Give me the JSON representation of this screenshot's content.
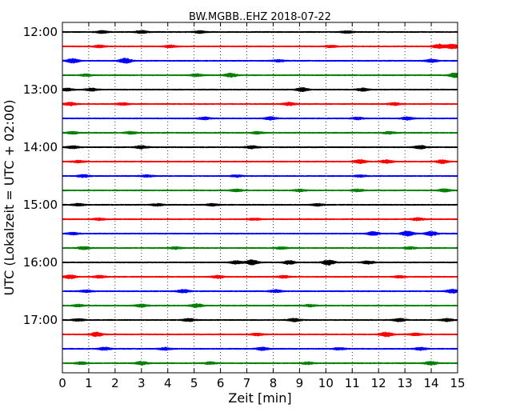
{
  "chart_data": {
    "type": "line",
    "title": "BW.MGBB..EHZ 2018-07-22",
    "xlabel": "Zeit  [min]",
    "ylabel": "UTC (Lokalzeit = UTC + 02:00)",
    "xlim": [
      0,
      15
    ],
    "x_ticks": [
      0,
      1,
      2,
      3,
      4,
      5,
      6,
      7,
      8,
      9,
      10,
      11,
      12,
      13,
      14,
      15
    ],
    "x_tick_labels": [
      "0",
      "1",
      "2",
      "3",
      "4",
      "5",
      "6",
      "7",
      "8",
      "9",
      "10",
      "11",
      "12",
      "13",
      "14",
      "15"
    ],
    "y_tick_labels": [
      "12:00",
      "13:00",
      "14:00",
      "15:00",
      "16:00",
      "17:00"
    ],
    "grid": "vertical dotted",
    "colors": [
      "#000000",
      "#ff0000",
      "#0000ff",
      "#008000"
    ],
    "traces": [
      {
        "start": "12:00",
        "bursts": [
          [
            1.5,
            1.3
          ],
          [
            3.0,
            1.6
          ],
          [
            5.2,
            1.2
          ],
          [
            10.8,
            1.2
          ]
        ]
      },
      {
        "start": "12:15",
        "bursts": [
          [
            1.4,
            1.4
          ],
          [
            4.1,
            1.3
          ],
          [
            10.2,
            1.2
          ],
          [
            14.3,
            2.4
          ],
          [
            14.8,
            2.7
          ]
        ]
      },
      {
        "start": "12:30",
        "bursts": [
          [
            0.4,
            2.5
          ],
          [
            2.4,
            2.9
          ],
          [
            8.2,
            1.2
          ],
          [
            14.0,
            1.6
          ]
        ]
      },
      {
        "start": "12:45",
        "bursts": [
          [
            0.9,
            1.2
          ],
          [
            5.1,
            1.4
          ],
          [
            6.4,
            2.2
          ],
          [
            14.9,
            2.5
          ]
        ]
      },
      {
        "start": "13:00",
        "bursts": [
          [
            0.2,
            1.4
          ],
          [
            1.1,
            1.5
          ],
          [
            9.1,
            2.0
          ],
          [
            11.4,
            1.6
          ]
        ]
      },
      {
        "start": "13:15",
        "bursts": [
          [
            0.3,
            1.8
          ],
          [
            2.3,
            1.3
          ],
          [
            8.6,
            1.7
          ],
          [
            12.6,
            1.4
          ]
        ]
      },
      {
        "start": "13:30",
        "bursts": [
          [
            5.4,
            1.3
          ],
          [
            7.9,
            1.6
          ],
          [
            11.2,
            1.3
          ],
          [
            13.1,
            1.7
          ]
        ]
      },
      {
        "start": "13:45",
        "bursts": [
          [
            0.4,
            1.3
          ],
          [
            2.6,
            1.5
          ],
          [
            7.4,
            1.2
          ],
          [
            12.4,
            1.3
          ]
        ]
      },
      {
        "start": "14:00",
        "bursts": [
          [
            0.4,
            1.4
          ],
          [
            3.0,
            1.8
          ],
          [
            7.2,
            1.5
          ],
          [
            13.6,
            1.8
          ]
        ]
      },
      {
        "start": "14:15",
        "bursts": [
          [
            0.6,
            1.3
          ],
          [
            11.3,
            2.2
          ],
          [
            12.3,
            1.8
          ],
          [
            14.4,
            2.0
          ]
        ]
      },
      {
        "start": "14:30",
        "bursts": [
          [
            0.8,
            1.5
          ],
          [
            3.2,
            1.2
          ],
          [
            6.6,
            1.2
          ],
          [
            11.3,
            1.1
          ]
        ]
      },
      {
        "start": "14:45",
        "bursts": [
          [
            6.6,
            1.3
          ],
          [
            9.0,
            1.2
          ],
          [
            11.2,
            1.4
          ],
          [
            14.5,
            1.6
          ]
        ]
      },
      {
        "start": "15:00",
        "bursts": [
          [
            0.6,
            1.3
          ],
          [
            3.6,
            1.2
          ],
          [
            5.7,
            1.2
          ],
          [
            9.7,
            1.2
          ]
        ]
      },
      {
        "start": "15:15",
        "bursts": [
          [
            1.4,
            1.2
          ],
          [
            7.3,
            1.2
          ],
          [
            13.5,
            1.6
          ]
        ]
      },
      {
        "start": "15:30",
        "bursts": [
          [
            0.4,
            1.2
          ],
          [
            11.8,
            2.1
          ],
          [
            13.1,
            2.8
          ],
          [
            14.0,
            2.4
          ]
        ]
      },
      {
        "start": "15:45",
        "bursts": [
          [
            0.8,
            1.6
          ],
          [
            4.3,
            1.2
          ],
          [
            8.3,
            1.2
          ],
          [
            13.2,
            1.3
          ]
        ]
      },
      {
        "start": "16:00",
        "bursts": [
          [
            6.6,
            1.7
          ],
          [
            7.2,
            2.8
          ],
          [
            8.6,
            2.1
          ],
          [
            10.1,
            2.9
          ],
          [
            11.6,
            1.6
          ]
        ]
      },
      {
        "start": "16:15",
        "bursts": [
          [
            0.3,
            2.1
          ],
          [
            1.4,
            1.5
          ],
          [
            5.9,
            1.7
          ],
          [
            8.4,
            1.4
          ],
          [
            12.8,
            1.2
          ]
        ]
      },
      {
        "start": "16:30",
        "bursts": [
          [
            0.9,
            1.3
          ],
          [
            4.6,
            1.8
          ],
          [
            8.1,
            1.6
          ],
          [
            14.8,
            2.1
          ]
        ]
      },
      {
        "start": "16:45",
        "bursts": [
          [
            0.6,
            1.3
          ],
          [
            3.0,
            1.5
          ],
          [
            5.1,
            2.1
          ],
          [
            9.4,
            1.3
          ]
        ]
      },
      {
        "start": "17:00",
        "bursts": [
          [
            0.6,
            1.2
          ],
          [
            4.8,
            1.5
          ],
          [
            8.8,
            1.7
          ],
          [
            12.8,
            1.6
          ],
          [
            14.6,
            1.5
          ]
        ]
      },
      {
        "start": "17:15",
        "bursts": [
          [
            1.3,
            2.3
          ],
          [
            7.4,
            1.3
          ],
          [
            12.3,
            2.7
          ],
          [
            13.4,
            1.4
          ]
        ]
      },
      {
        "start": "17:30",
        "bursts": [
          [
            1.6,
            1.6
          ],
          [
            3.9,
            1.4
          ],
          [
            7.6,
            1.7
          ],
          [
            10.5,
            1.2
          ],
          [
            13.6,
            1.6
          ]
        ]
      },
      {
        "start": "17:45",
        "bursts": [
          [
            0.7,
            1.3
          ],
          [
            3.0,
            1.9
          ],
          [
            5.6,
            1.3
          ],
          [
            9.3,
            1.3
          ],
          [
            14.0,
            2.1
          ]
        ]
      }
    ]
  }
}
